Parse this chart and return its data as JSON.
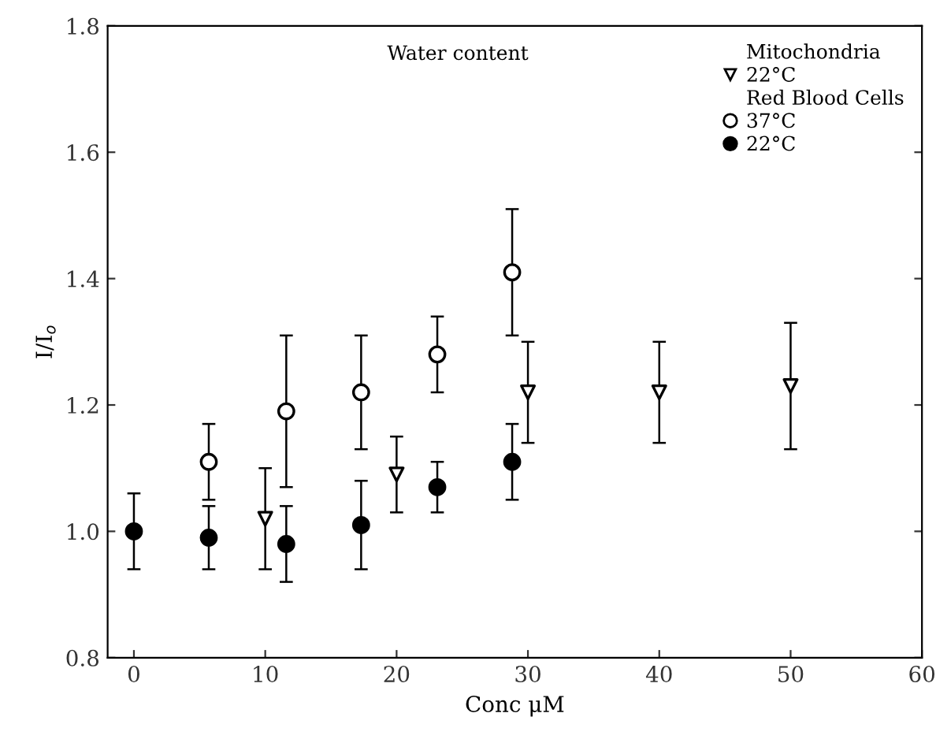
{
  "chart_data": {
    "type": "scatter",
    "xlabel": "Conc μM",
    "ylabel": "I/I$_{o}$",
    "annotations": [
      "Water content",
      "Mitochondria",
      "Red Blood Cells"
    ],
    "xlim": [
      -2,
      60
    ],
    "ylim": [
      0.8,
      1.8
    ],
    "xticks": [
      0,
      10,
      20,
      30,
      40,
      50,
      60
    ],
    "yticks": [
      0.8,
      {
        "value": 1,
        "label": "1.0"
      },
      1.2,
      1.4,
      1.6,
      1.8
    ],
    "grid": false,
    "legend": "top right",
    "series": [
      {
        "name": "22°C",
        "color": "#000000",
        "marker": "triangle",
        "colors": [
          "#ffffff",
          "#ffffff",
          "#ffffff",
          "#ffffff",
          "#ffffff"
        ],
        "x": [
          10,
          20,
          30,
          40,
          50
        ],
        "values": [
          1.02,
          1.09,
          1.22,
          1.22,
          1.23
        ],
        "errors": [
          [
            0.94,
            1.1
          ],
          [
            1.03,
            1.15
          ],
          [
            1.14,
            1.3
          ],
          [
            1.14,
            1.3
          ],
          [
            1.13,
            1.33
          ]
        ]
      },
      {
        "name": "37°C",
        "color": "#000000",
        "marker": "circle",
        "colors": [
          "#ffffff",
          "#ffffff",
          "#ffffff",
          "#ffffff",
          "#ffffff"
        ],
        "x": [
          5.7,
          11.6,
          17.3,
          23.1,
          28.8
        ],
        "values": [
          1.11,
          1.19,
          1.22,
          1.28,
          1.41
        ],
        "errors": [
          [
            1.05,
            1.17
          ],
          [
            1.07,
            1.31
          ],
          [
            1.13,
            1.31
          ],
          [
            1.22,
            1.34
          ],
          [
            1.31,
            1.51
          ]
        ]
      },
      {
        "name": "22°C",
        "color": "#000000",
        "marker": "circle",
        "x": [
          0,
          5.7,
          11.6,
          17.3,
          23.1,
          28.8
        ],
        "values": [
          1.0,
          0.99,
          0.98,
          1.01,
          1.07,
          1.11
        ],
        "errors": [
          [
            0.94,
            1.06
          ],
          [
            0.94,
            1.04
          ],
          [
            0.92,
            1.04
          ],
          [
            0.94,
            1.08
          ],
          [
            1.03,
            1.11
          ],
          [
            1.05,
            1.17
          ]
        ]
      }
    ]
  }
}
